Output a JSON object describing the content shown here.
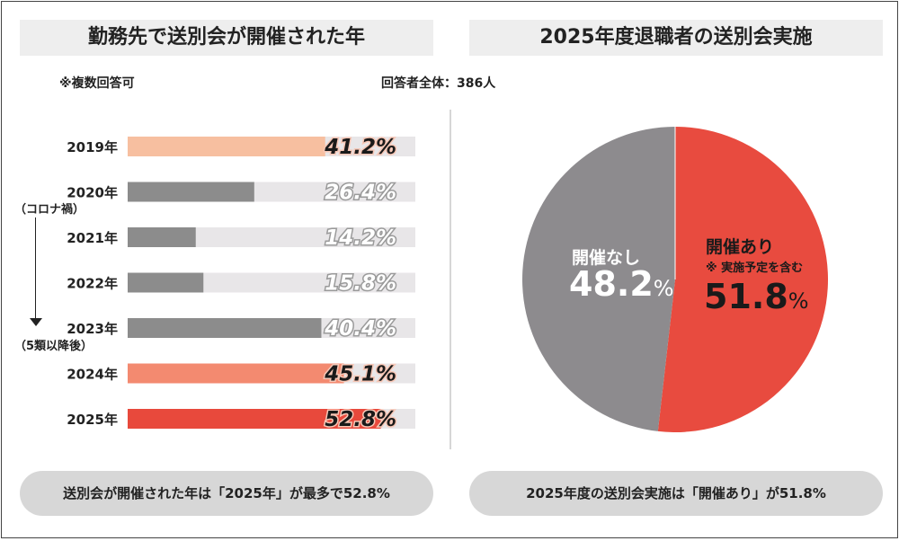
{
  "left_title": "勤務先で送別会が開催された年",
  "right_title": "2025年度退職者の送別会実施",
  "multi_note": "※複数回答可",
  "total_note": "回答者全体：386人",
  "covid_note": "（コロナ禍）",
  "class5_note": "（5類以降後）",
  "summary_left": "送別会が開催された年は「2025年」が最多で52.8%",
  "summary_right": "2025年度の送別会実施は「開催あり」が51.8%",
  "colors": {
    "track": "#e8e6e8",
    "gray": "#8c8c8c",
    "peach": "#f7bfa0",
    "salmon": "#f38a70",
    "red": "#e8493c",
    "pie_gray": "#8d8b8e",
    "pie_red": "#e84b3f"
  },
  "chart_data": [
    {
      "type": "bar",
      "orientation": "horizontal",
      "categories": [
        "2019年",
        "2020年",
        "2021年",
        "2022年",
        "2023年",
        "2024年",
        "2025年"
      ],
      "values": [
        41.2,
        26.4,
        14.2,
        15.8,
        40.4,
        45.1,
        52.8
      ],
      "value_labels": [
        "41.2%",
        "26.4%",
        "14.2%",
        "15.8%",
        "40.4%",
        "45.1%",
        "52.8%"
      ],
      "highlight": [
        true,
        false,
        false,
        false,
        false,
        true,
        true
      ],
      "bar_colors": [
        "#f7bfa0",
        "#8c8c8c",
        "#8c8c8c",
        "#8c8c8c",
        "#8c8c8c",
        "#f38a70",
        "#e8493c"
      ],
      "xlim": [
        0,
        60
      ],
      "grid": false
    },
    {
      "type": "pie",
      "slices": [
        {
          "label": "開催あり",
          "sublabel": "※ 実施予定を含む",
          "value": 51.8,
          "value_label": "51.8",
          "color": "#e84b3f"
        },
        {
          "label": "開催なし",
          "sublabel": "",
          "value": 48.2,
          "value_label": "48.2",
          "color": "#8d8b8e"
        }
      ],
      "percent_sign": "%"
    }
  ]
}
